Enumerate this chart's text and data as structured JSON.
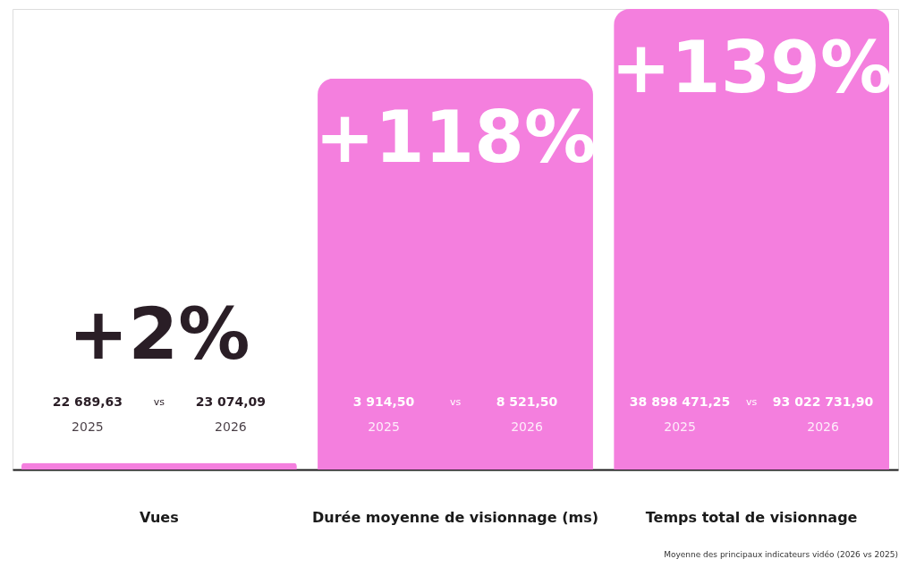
{
  "chart_data": {
    "type": "bar",
    "categories": [
      "Vues",
      "Durée moyenne de visionnage (ms)",
      "Temps total de visionnage"
    ],
    "values": [
      2,
      118,
      139
    ],
    "value_labels": [
      "+2%",
      "+118%",
      "+139%"
    ],
    "color": "#f47fde",
    "tick_labels": "x",
    "annotations": [
      "22 689,63",
      "vs",
      "23 074,09",
      "2025",
      "2026",
      "3 914,50",
      "vs",
      "8 521,50",
      "2025",
      "2026",
      "38 898 471,25",
      "vs",
      "93 022 731,90",
      "2025",
      "2026",
      "Moyenne des principaux indicateurs vidéo (2026 vs 2025)"
    ]
  }
}
